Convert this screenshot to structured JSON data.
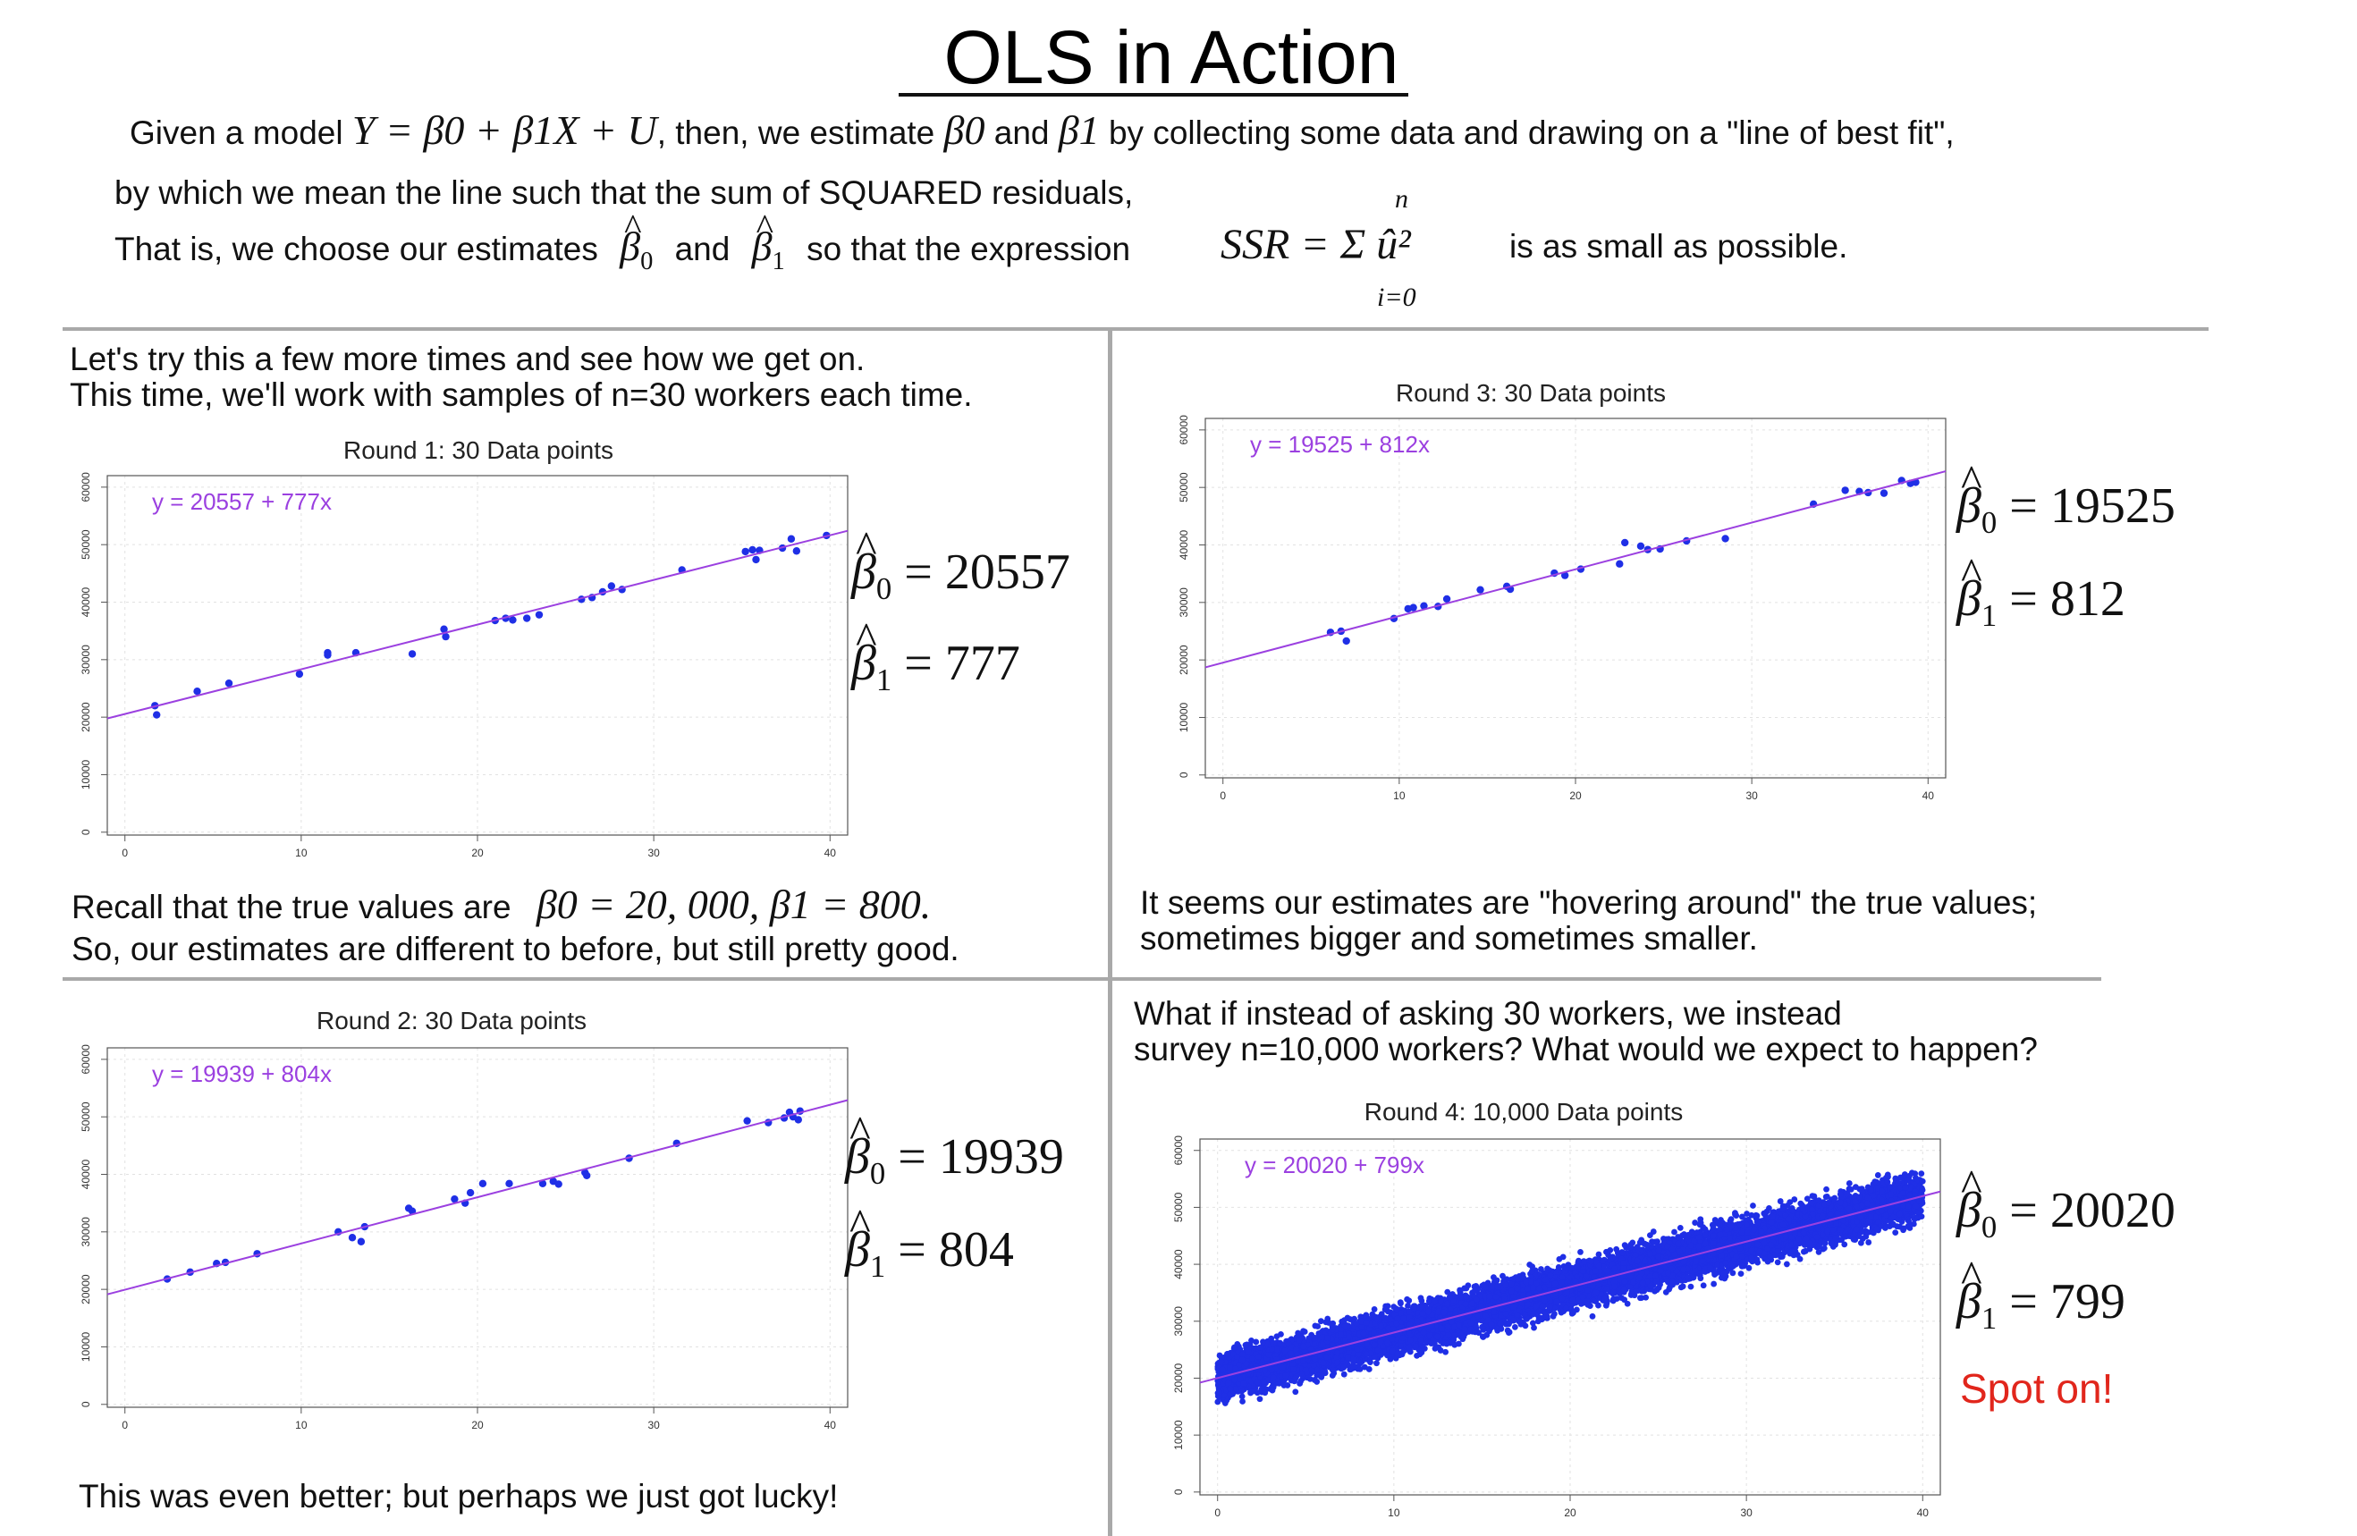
{
  "title": "OLS in Action",
  "intro": {
    "line1_a": "Given a model",
    "model_eq": "Y = β0 + β1X + U",
    "line1_b": ", then, we estimate",
    "beta0": "β0",
    "and": "and",
    "beta1": "β1",
    "line1_c": "by collecting some data and drawing on a \"line of best fit\",",
    "line2": "by which we mean the line such that the sum of SQUARED residuals,",
    "line3_a": "That is, we choose our estimates",
    "line3_b": "so that the expression",
    "ssr_eq": "SSR = Σ û²",
    "sum_upper": "n",
    "sum_lower": "i=0",
    "line3_c": "is as small as possible."
  },
  "panel1": {
    "text_a": "Let's try this a few more times and see how we get on.",
    "text_b": "This time, we'll work with samples of n=30 workers each time.",
    "recall_a": "Recall that the true values are",
    "recall_eq": "β0 = 20, 000, β1 = 800.",
    "recall_b": "So, our estimates are different to before, but still pretty good."
  },
  "panel2": {
    "text": "This was even better; but perhaps we just got lucky!"
  },
  "panel3": {
    "text_a": "It seems our estimates are \"hovering around\" the true values;",
    "text_b": "sometimes bigger and sometimes smaller."
  },
  "panel4": {
    "text_a": "What if instead of asking 30 workers, we instead",
    "text_b": "survey n=10,000 workers? What would we expect to happen?",
    "spot_on": "Spot on!"
  },
  "colors": {
    "points": "#1f2fe6",
    "fit_line": "#9b40e0",
    "equation": "#9b40e0",
    "spot_on": "#e1261c"
  },
  "chart_data": [
    {
      "id": "round1",
      "type": "scatter",
      "title": "Round 1: 30 Data points",
      "equation": "y = 20557 + 777x",
      "intercept": 20557,
      "slope": 777,
      "b0_value": "20557",
      "b1_value": "777",
      "xlim": [
        -1,
        41
      ],
      "ylim": [
        -500,
        62000
      ],
      "x_ticks": [
        0,
        10,
        20,
        30,
        40
      ],
      "y_ticks": [
        0,
        10000,
        20000,
        30000,
        40000,
        50000,
        60000
      ],
      "grid": true,
      "points": [
        [
          1.7,
          22000
        ],
        [
          1.8,
          20400
        ],
        [
          4.1,
          24500
        ],
        [
          5.9,
          25900
        ],
        [
          9.9,
          27500
        ],
        [
          11.5,
          31200
        ],
        [
          11.5,
          30800
        ],
        [
          13.1,
          31200
        ],
        [
          16.3,
          31000
        ],
        [
          18.1,
          35300
        ],
        [
          18.2,
          34000
        ],
        [
          21.0,
          36800
        ],
        [
          21.6,
          37200
        ],
        [
          22.0,
          36900
        ],
        [
          22.8,
          37200
        ],
        [
          23.5,
          37800
        ],
        [
          25.9,
          40500
        ],
        [
          26.5,
          40800
        ],
        [
          27.1,
          41800
        ],
        [
          27.6,
          42800
        ],
        [
          28.2,
          42200
        ],
        [
          31.6,
          45600
        ],
        [
          35.2,
          48800
        ],
        [
          35.6,
          49100
        ],
        [
          35.8,
          47400
        ],
        [
          36.0,
          49000
        ],
        [
          37.3,
          49400
        ],
        [
          37.8,
          51000
        ],
        [
          38.1,
          48900
        ],
        [
          39.8,
          51600
        ]
      ]
    },
    {
      "id": "round2",
      "type": "scatter",
      "title": "Round 2: 30 Data points",
      "equation": "y = 19939 + 804x",
      "intercept": 19939,
      "slope": 804,
      "b0_value": "19939",
      "b1_value": "804",
      "xlim": [
        -1,
        41
      ],
      "ylim": [
        -500,
        62000
      ],
      "x_ticks": [
        0,
        10,
        20,
        30,
        40
      ],
      "y_ticks": [
        0,
        10000,
        20000,
        30000,
        40000,
        50000,
        60000
      ],
      "grid": true,
      "points": [
        [
          2.4,
          21800
        ],
        [
          3.7,
          23000
        ],
        [
          5.2,
          24500
        ],
        [
          5.7,
          24700
        ],
        [
          7.5,
          26200
        ],
        [
          12.1,
          30000
        ],
        [
          12.9,
          29000
        ],
        [
          13.4,
          28300
        ],
        [
          13.6,
          30900
        ],
        [
          16.1,
          34100
        ],
        [
          16.3,
          33600
        ],
        [
          18.7,
          35700
        ],
        [
          19.3,
          35000
        ],
        [
          19.6,
          36800
        ],
        [
          20.3,
          38400
        ],
        [
          21.8,
          38400
        ],
        [
          23.7,
          38400
        ],
        [
          24.3,
          38800
        ],
        [
          24.6,
          38300
        ],
        [
          26.1,
          40300
        ],
        [
          26.2,
          39800
        ],
        [
          28.6,
          42800
        ],
        [
          31.3,
          45400
        ],
        [
          35.3,
          49300
        ],
        [
          36.5,
          49000
        ],
        [
          37.4,
          49800
        ],
        [
          37.7,
          50800
        ],
        [
          37.9,
          50000
        ],
        [
          38.2,
          49500
        ],
        [
          38.3,
          51000
        ]
      ]
    },
    {
      "id": "round3",
      "type": "scatter",
      "title": "Round 3: 30 Data points",
      "equation": "y = 19525 + 812x",
      "intercept": 19525,
      "slope": 812,
      "b0_value": "19525",
      "b1_value": "812",
      "xlim": [
        -1,
        41
      ],
      "ylim": [
        -500,
        62000
      ],
      "x_ticks": [
        0,
        10,
        20,
        30,
        40
      ],
      "y_ticks": [
        0,
        10000,
        20000,
        30000,
        40000,
        50000,
        60000
      ],
      "grid": true,
      "points": [
        [
          6.1,
          24800
        ],
        [
          6.7,
          25000
        ],
        [
          7.0,
          23300
        ],
        [
          9.7,
          27200
        ],
        [
          10.5,
          28900
        ],
        [
          10.8,
          29100
        ],
        [
          11.4,
          29400
        ],
        [
          12.2,
          29300
        ],
        [
          12.7,
          30600
        ],
        [
          14.6,
          32200
        ],
        [
          16.1,
          32800
        ],
        [
          16.3,
          32300
        ],
        [
          18.8,
          35100
        ],
        [
          19.4,
          34700
        ],
        [
          20.3,
          35800
        ],
        [
          22.5,
          36700
        ],
        [
          22.8,
          40400
        ],
        [
          23.7,
          39800
        ],
        [
          24.1,
          39200
        ],
        [
          24.8,
          39300
        ],
        [
          26.3,
          40700
        ],
        [
          28.5,
          41100
        ],
        [
          33.5,
          47100
        ],
        [
          35.3,
          49500
        ],
        [
          36.1,
          49300
        ],
        [
          36.6,
          49100
        ],
        [
          37.5,
          49000
        ],
        [
          38.5,
          51200
        ],
        [
          39.3,
          50900
        ],
        [
          39.0,
          50700
        ]
      ]
    },
    {
      "id": "round4",
      "type": "scatter",
      "title": "Round 4: 10,000 Data points",
      "equation": "y = 20020 + 799x",
      "intercept": 20020,
      "slope": 799,
      "b0_value": "20020",
      "b1_value": "799",
      "xlim": [
        -1,
        41
      ],
      "ylim": [
        -500,
        62000
      ],
      "x_ticks": [
        0,
        10,
        20,
        30,
        40
      ],
      "y_ticks": [
        0,
        10000,
        20000,
        30000,
        40000,
        50000,
        60000
      ],
      "grid": true,
      "point_count": 10000,
      "x_range": [
        0,
        40
      ],
      "spread": 2000
    }
  ]
}
